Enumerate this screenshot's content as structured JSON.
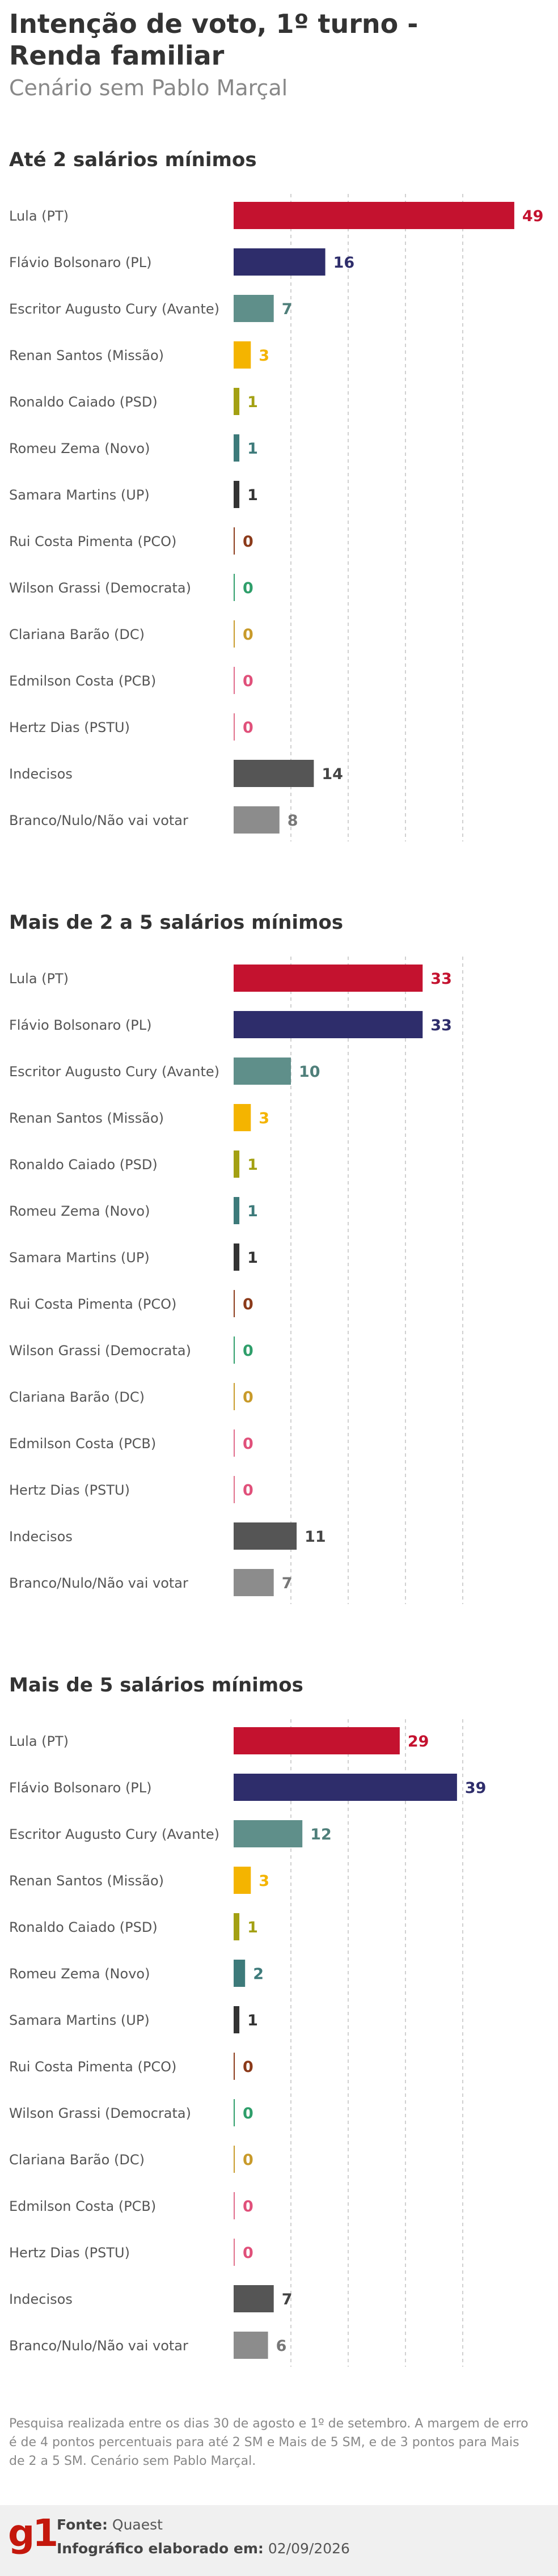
{
  "header": {
    "title_line1": "Intenção de voto, 1º turno -",
    "title_line2": "Renda familiar",
    "subtitle": "Cenário sem Pablo Marçal"
  },
  "chart_data": [
    {
      "type": "bar",
      "title": "Até 2 salários mínimos",
      "categories": [
        "Lula (PT)",
        "Flávio Bolsonaro (PL)",
        "Escritor Augusto Cury (Avante)",
        "Renan Santos (Missão)",
        "Ronaldo Caiado (PSD)",
        "Romeu Zema (Novo)",
        "Samara Martins (UP)",
        "Rui Costa Pimenta (PCO)",
        "Wilson Grassi (Democrata)",
        "Clariana Barão (DC)",
        "Edmilson Costa (PCB)",
        "Hertz Dias (PSTU)",
        "Indecisos",
        "Branco/Nulo/Não vai votar"
      ],
      "values": [
        49,
        16,
        7,
        3,
        1,
        1,
        1,
        0,
        0,
        0,
        0,
        0,
        14,
        8
      ],
      "xlim": [
        0,
        50
      ]
    },
    {
      "type": "bar",
      "title": "Mais de 2 a 5 salários mínimos",
      "categories": [
        "Lula (PT)",
        "Flávio Bolsonaro (PL)",
        "Escritor Augusto Cury (Avante)",
        "Renan Santos (Missão)",
        "Ronaldo Caiado (PSD)",
        "Romeu Zema (Novo)",
        "Samara Martins (UP)",
        "Rui Costa Pimenta (PCO)",
        "Wilson Grassi (Democrata)",
        "Clariana Barão (DC)",
        "Edmilson Costa (PCB)",
        "Hertz Dias (PSTU)",
        "Indecisos",
        "Branco/Nulo/Não vai votar"
      ],
      "values": [
        33,
        33,
        10,
        3,
        1,
        1,
        1,
        0,
        0,
        0,
        0,
        0,
        11,
        7
      ],
      "xlim": [
        0,
        50
      ]
    },
    {
      "type": "bar",
      "title": "Mais de 5 salários mínimos",
      "categories": [
        "Lula (PT)",
        "Flávio Bolsonaro (PL)",
        "Escritor Augusto Cury (Avante)",
        "Renan Santos (Missão)",
        "Ronaldo Caiado (PSD)",
        "Romeu Zema (Novo)",
        "Samara Martins (UP)",
        "Rui Costa Pimenta (PCO)",
        "Wilson Grassi (Democrata)",
        "Clariana Barão (DC)",
        "Edmilson Costa (PCB)",
        "Hertz Dias (PSTU)",
        "Indecisos",
        "Branco/Nulo/Não vai votar"
      ],
      "values": [
        29,
        39,
        12,
        3,
        1,
        2,
        1,
        0,
        0,
        0,
        0,
        0,
        7,
        6
      ],
      "xlim": [
        0,
        50
      ]
    }
  ],
  "colors": {
    "bars": [
      "#c4122f",
      "#2e2d6b",
      "#5f8f8a",
      "#f4b400",
      "#a3a012",
      "#3d7a7a",
      "#333333",
      "#8b3a1a",
      "#2e9e6a",
      "#c89a2a",
      "#e06a8a",
      "#e0708a",
      "#555555",
      "#8c8c8c"
    ],
    "labels": [
      "#c4122f",
      "#2e2d6b",
      "#4f7f7a",
      "#f4b400",
      "#a3a012",
      "#3d7a7a",
      "#333333",
      "#8b3a1a",
      "#2e9e6a",
      "#c89a2a",
      "#e0507a",
      "#e0507a",
      "#444444",
      "#777777"
    ],
    "grid": "#d0d0d0"
  },
  "note": "Pesquisa realizada entre os dias 30 de agosto e 1º de setembro. A margem de erro é de 4 pontos percentuais para até 2 SM e Mais de 5 SM, e de 3 pontos para Mais de 2 a 5 SM. Cenário sem Pablo Marçal.",
  "footer": {
    "logo": "g1",
    "source_label": "Fonte:",
    "source_value": "Quaest",
    "credit_label": "Infográfico elaborado em:",
    "credit_value": "02/09/2026"
  }
}
